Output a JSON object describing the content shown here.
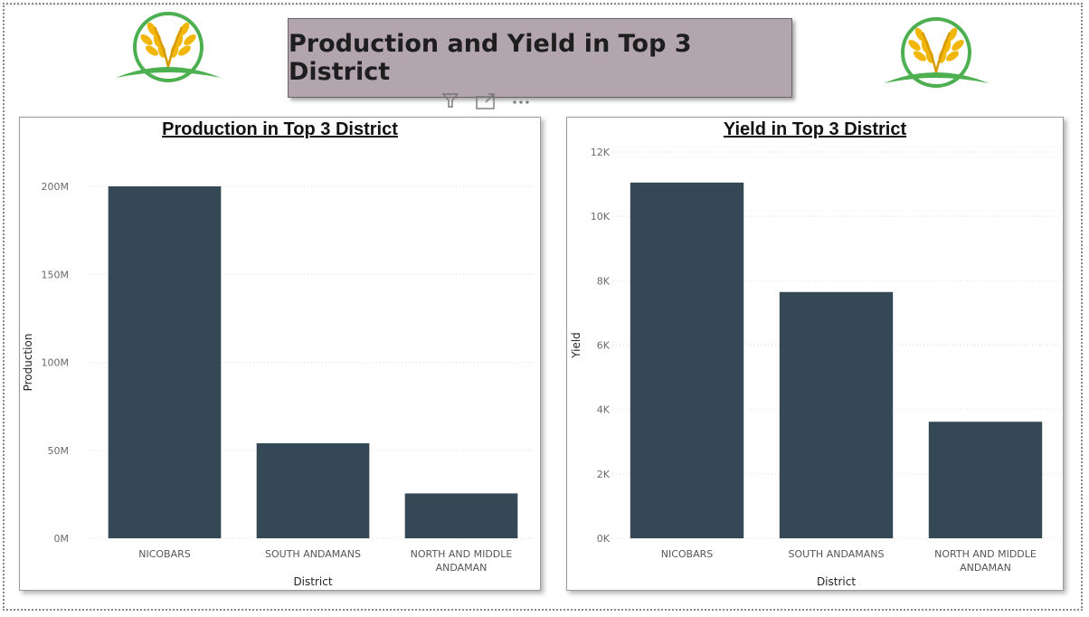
{
  "page": {
    "title": "Production and Yield in Top 3 District",
    "logo_icon": "wheat-logo-icon",
    "visual_icons": [
      "filter-icon",
      "focus-mode-icon",
      "more-options-icon"
    ]
  },
  "colors": {
    "bar": "#344955",
    "title_bg": "#b3a5ae",
    "logo_green": "#4caf50",
    "logo_gold": "#f2b705"
  },
  "chart_data": [
    {
      "type": "bar",
      "title": "Production in Top 3 District",
      "xlabel": "District",
      "ylabel": "Production",
      "categories": [
        [
          "NICOBARS"
        ],
        [
          "SOUTH ANDAMANS"
        ],
        [
          "NORTH AND MIDDLE",
          "ANDAMAN"
        ]
      ],
      "values": [
        200000000,
        54000000,
        25500000
      ],
      "ylim": [
        0,
        200000000
      ],
      "yticks": [
        0,
        50000000,
        100000000,
        150000000,
        200000000
      ],
      "ytick_labels": [
        "0M",
        "50M",
        "100M",
        "150M",
        "200M"
      ],
      "grid": true
    },
    {
      "type": "bar",
      "title": "Yield in Top 3 District",
      "xlabel": "District",
      "ylabel": "Yield",
      "categories": [
        [
          "NICOBARS"
        ],
        [
          "SOUTH ANDAMANS"
        ],
        [
          "NORTH AND MIDDLE",
          "ANDAMAN"
        ]
      ],
      "values": [
        11050,
        7650,
        3620
      ],
      "ylim": [
        0,
        12000
      ],
      "yticks": [
        0,
        2000,
        4000,
        6000,
        8000,
        10000,
        12000
      ],
      "ytick_labels": [
        "0K",
        "2K",
        "4K",
        "6K",
        "8K",
        "10K",
        "12K"
      ],
      "grid": true
    }
  ]
}
